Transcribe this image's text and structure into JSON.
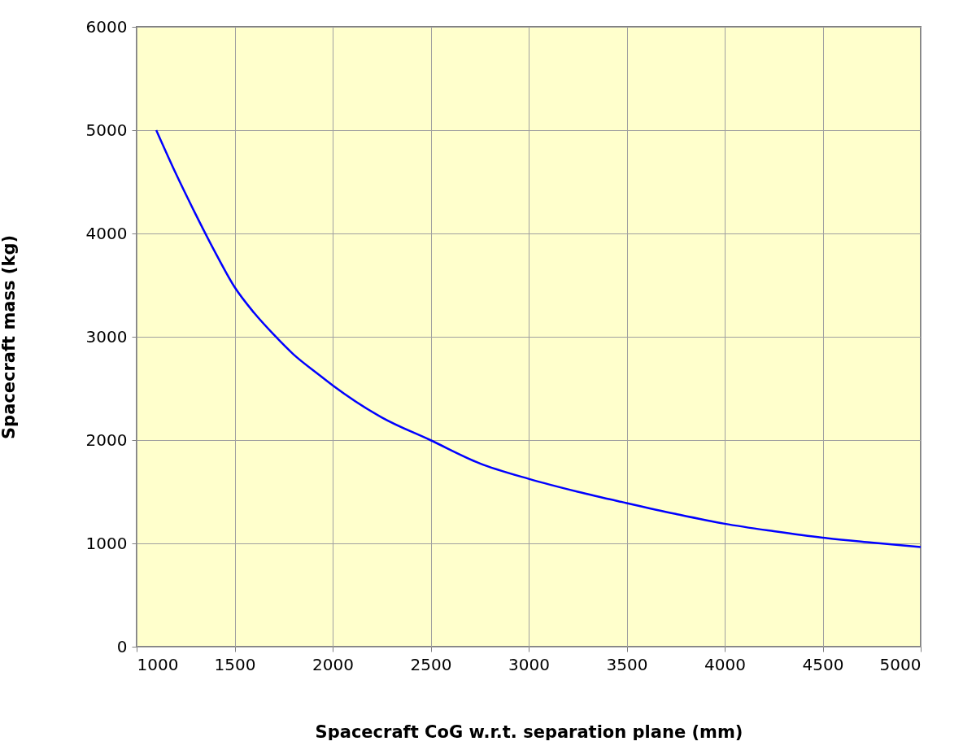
{
  "chart_data": {
    "type": "line",
    "xlabel": "Spacecraft CoG w.r.t. separation plane (mm)",
    "ylabel": "Spacecraft mass (kg)",
    "x": [
      1100,
      1200,
      1300,
      1400,
      1500,
      1600,
      1700,
      1800,
      1925,
      2000,
      2250,
      2498,
      2750,
      3000,
      3250,
      3500,
      3750,
      4000,
      4250,
      4500,
      4750,
      5000
    ],
    "series": [
      {
        "color": "#0000ff",
        "values": [
          5000,
          4580,
          4190,
          3820,
          3480,
          3230,
          3020,
          2830,
          2640,
          2530,
          2220,
          2000,
          1775,
          1625,
          1500,
          1390,
          1285,
          1190,
          1118,
          1055,
          1008,
          965
        ]
      }
    ],
    "xlim": [
      1000,
      5000
    ],
    "xticks": [
      1000,
      1500,
      2000,
      2500,
      3000,
      3500,
      4000,
      4500,
      5000
    ],
    "ylim": [
      0,
      6000
    ],
    "yticks": [
      0,
      1000,
      2000,
      3000,
      4000,
      5000,
      6000
    ],
    "grid": true,
    "marker": "none",
    "line_style": "solid"
  }
}
